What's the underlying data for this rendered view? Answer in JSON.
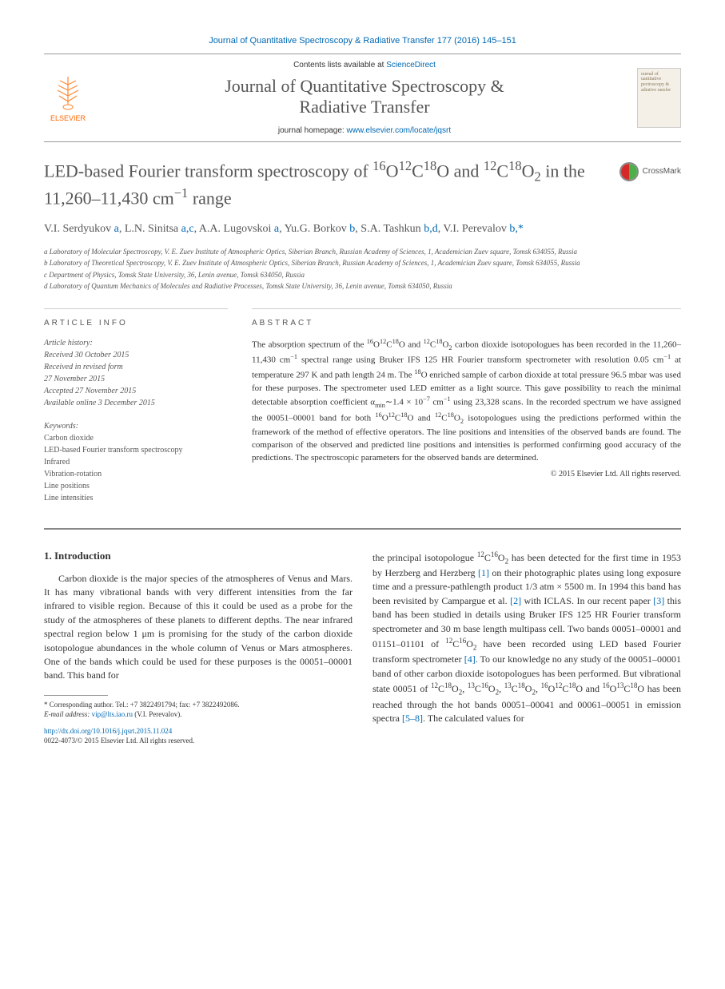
{
  "citation": "Journal of Quantitative Spectroscopy & Radiative Transfer 177 (2016) 145–151",
  "banner": {
    "publisher": "ELSEVIER",
    "contents_prefix": "Contents lists available at ",
    "contents_link": "ScienceDirect",
    "journal_name_line1": "Journal of Quantitative Spectroscopy &",
    "journal_name_line2": "Radiative Transfer",
    "homepage_prefix": "journal homepage: ",
    "homepage_url": "www.elsevier.com/locate/jqsrt",
    "cover_text": "ournal of uantitative pectroscopy & adiative ransfer"
  },
  "title_html": "LED-based Fourier transform spectroscopy of <sup>16</sup>O<sup>12</sup>C<sup>18</sup>O and <sup>12</sup>C<sup>18</sup>O<sub>2</sub> in the 11,260–11,430 cm<sup>−1</sup> range",
  "crossmark_label": "CrossMark",
  "authors_html": "V.I. Serdyukov <a>a</a>, L.N. Sinitsa <a>a,c</a>, A.A. Lugovskoi <a>a</a>, Yu.G. Borkov <a>b</a>, S.A. Tashkun <a>b,d</a>, V.I. Perevalov <a>b,*</a>",
  "affiliations": [
    "a Laboratory of Molecular Spectroscopy, V. E. Zuev Institute of Atmospheric Optics, Siberian Branch, Russian Academy of Sciences, 1, Academician Zuev square, Tomsk 634055, Russia",
    "b Laboratory of Theoretical Spectroscopy, V. E. Zuev Institute of Atmospheric Optics, Siberian Branch, Russian Academy of Sciences, 1, Academician Zuev square, Tomsk 634055, Russia",
    "c Department of Physics, Tomsk State University, 36, Lenin avenue, Tomsk 634050, Russia",
    "d Laboratory of Quantum Mechanics of Molecules and Radiative Processes, Tomsk State University, 36, Lenin avenue, Tomsk 634050, Russia"
  ],
  "article_info": {
    "header": "ARTICLE INFO",
    "history_label": "Article history:",
    "received": "Received 30 October 2015",
    "revised1": "Received in revised form",
    "revised2": "27 November 2015",
    "accepted": "Accepted 27 November 2015",
    "online": "Available online 3 December 2015",
    "keywords_label": "Keywords:",
    "keywords": [
      "Carbon dioxide",
      "LED-based Fourier transform spectroscopy",
      "Infrared",
      "Vibration-rotation",
      "Line positions",
      "Line intensities"
    ]
  },
  "abstract": {
    "header": "ABSTRACT",
    "text_html": "The absorption spectrum of the <sup>16</sup>O<sup>12</sup>C<sup>18</sup>O and <sup>12</sup>C<sup>18</sup>O<sub>2</sub> carbon dioxide isotopologues has been recorded in the 11,260– 11,430 cm<sup>−1</sup> spectral range using Bruker IFS 125 HR Fourier transform spectrometer with resolution 0.05 cm<sup>−1</sup> at temperature 297 K and path length 24 m. The <sup>18</sup>O enriched sample of carbon dioxide at total pressure 96.5 mbar was used for these purposes. The spectrometer used LED emitter as a light source. This gave possibility to reach the minimal detectable absorption coefficient α<sub>min</sub>∼1.4 × 10<sup>−7</sup> cm<sup>−1</sup> using 23,328 scans. In the recorded spectrum we have assigned the 00051–00001 band for both <sup>16</sup>O<sup>12</sup>C<sup>18</sup>O and <sup>12</sup>C<sup>18</sup>O<sub>2</sub> isotopologues using the predictions performed within the framework of the method of effective operators. The line positions and intensities of the observed bands are found. The comparison of the observed and predicted line positions and intensities is performed confirming good accuracy of the predictions. The spectroscopic parameters for the observed bands are determined.",
    "copyright": "© 2015 Elsevier Ltd. All rights reserved."
  },
  "intro": {
    "title": "1. Introduction",
    "col1_html": "Carbon dioxide is the major species of the atmospheres of Venus and Mars. It has many vibrational bands with very different intensities from the far infrared to visible region. Because of this it could be used as a probe for the study of the atmospheres of these planets to different depths. The near infrared spectral region below 1 μm is promising for the study of the carbon dioxide isotopologue abundances in the whole column of Venus or Mars atmospheres. One of the bands which could be used for these purposes is the 00051–00001 band. This band for",
    "col2_html": "the principal isotopologue <sup>12</sup>C<sup>16</sup>O<sub>2</sub> has been detected for the first time in 1953 by Herzberg and Herzberg <a>[1]</a> on their photographic plates using long exposure time and a pressure-pathlength product 1/3 atm × 5500 m. In 1994 this band has been revisited by Campargue et al. <a>[2]</a> with ICLAS. In our recent paper <a>[3]</a> this band has been studied in details using Bruker IFS 125 HR Fourier transform spectrometer and 30 m base length multipass cell. Two bands 00051–00001 and 01151–01101 of <sup>12</sup>C<sup>16</sup>O<sub>2</sub> have been recorded using LED based Fourier transform spectrometer <a>[4]</a>. To our knowledge no any study of the 00051–00001 band of other carbon dioxide isotopologues has been performed. But vibrational state 00051 of <sup>12</sup>C<sup>18</sup>O<sub>2</sub>, <sup>13</sup>C<sup>16</sup>O<sub>2</sub>, <sup>13</sup>C<sup>18</sup>O<sub>2</sub>, <sup>16</sup>O<sup>12</sup>C<sup>18</sup>O and <sup>16</sup>O<sup>13</sup>C<sup>18</sup>O has been reached through the hot bands 00051–00041 and 00061–00051 in emission spectra <a>[5–8]</a>. The calculated values for"
  },
  "footnote": {
    "corresponding": "* Corresponding author. Tel.: +7 3822491794; fax: +7 3822492086.",
    "email_label": "E-mail address: ",
    "email": "vip@lts.iao.ru",
    "email_name": " (V.I. Perevalov)."
  },
  "bottom": {
    "doi": "http://dx.doi.org/10.1016/j.jqsrt.2015.11.024",
    "issn": "0022-4073/© 2015 Elsevier Ltd. All rights reserved."
  },
  "colors": {
    "link": "#0068b3",
    "text": "#333333",
    "muted": "#555555",
    "accent": "#ff6600"
  }
}
